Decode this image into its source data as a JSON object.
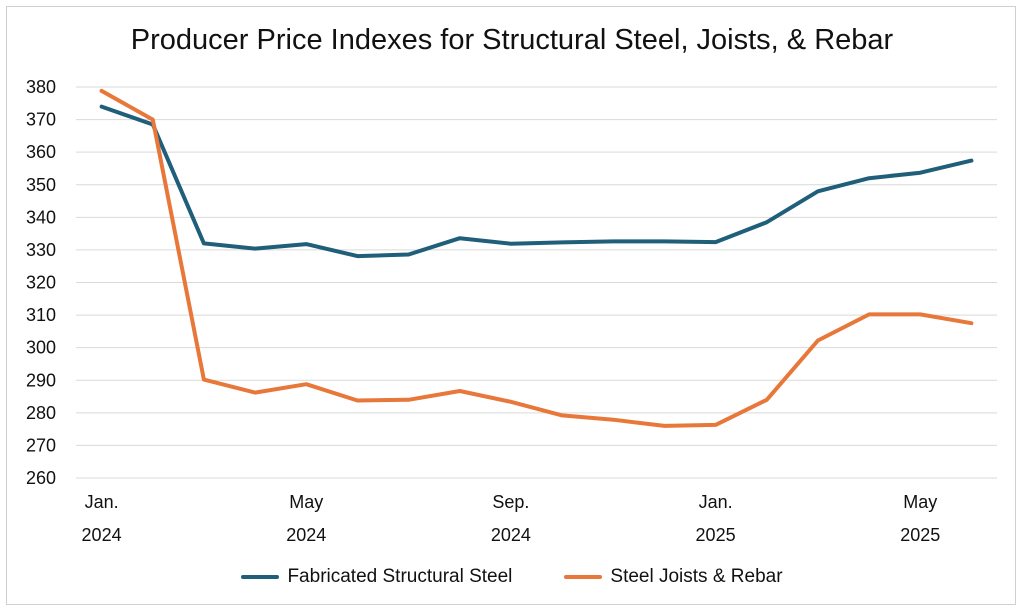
{
  "chart_data": {
    "type": "line",
    "title": "Producer Price Indexes for Structural Steel, Joists, & Rebar",
    "xlabel": "",
    "ylabel": "",
    "ylim": [
      260,
      380
    ],
    "yticks": [
      260,
      270,
      280,
      290,
      300,
      310,
      320,
      330,
      340,
      350,
      360,
      370,
      380
    ],
    "x": [
      "2024-01",
      "2024-02",
      "2024-03",
      "2024-04",
      "2024-05",
      "2024-06",
      "2024-07",
      "2024-08",
      "2024-09",
      "2024-10",
      "2024-11",
      "2024-12",
      "2025-01",
      "2025-02",
      "2025-03",
      "2025-04",
      "2025-05",
      "2025-06"
    ],
    "xtick_labels": [
      {
        "x": "2024-01",
        "line1": "Jan.",
        "line2": "2024"
      },
      {
        "x": "2024-05",
        "line1": "May",
        "line2": "2024"
      },
      {
        "x": "2024-09",
        "line1": "Sep.",
        "line2": "2024"
      },
      {
        "x": "2025-01",
        "line1": "Jan.",
        "line2": "2025"
      },
      {
        "x": "2025-05",
        "line1": "May",
        "line2": "2025"
      }
    ],
    "grid": true,
    "legend_position": "bottom",
    "series": [
      {
        "name": "Fabricated Structural Steel",
        "color": "#1f5f7a",
        "values": [
          374,
          368.5,
          332,
          330.4,
          331.8,
          328.1,
          328.6,
          333.6,
          331.9,
          332.3,
          332.6,
          332.6,
          332.4,
          338.5,
          348,
          352,
          353.7,
          357.4
        ]
      },
      {
        "name": "Steel Joists & Rebar",
        "color": "#e8773a",
        "values": [
          378.8,
          370,
          290.2,
          286.2,
          288.8,
          283.8,
          284,
          286.7,
          283.4,
          279.2,
          277.9,
          276,
          276.3,
          284,
          302.2,
          310.2,
          310.2,
          307.5
        ]
      }
    ]
  }
}
